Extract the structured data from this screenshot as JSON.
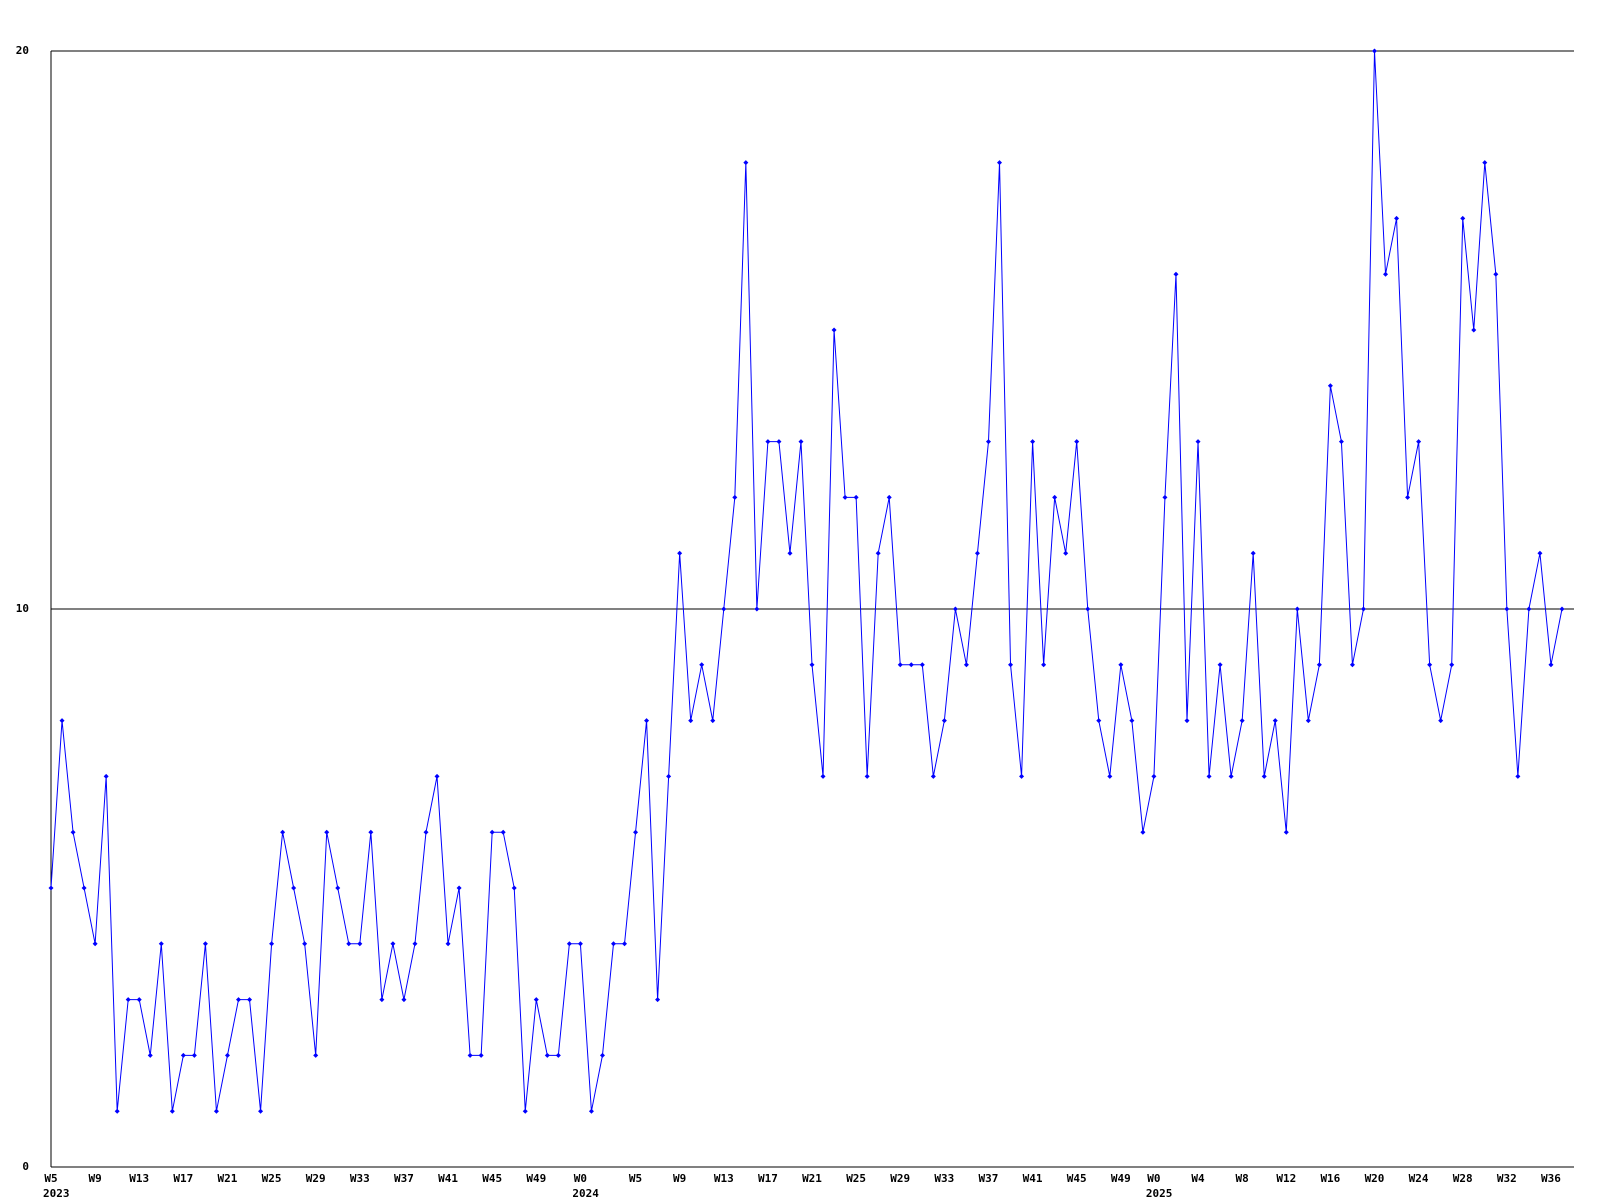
{
  "chart_data": {
    "type": "line",
    "categories": [
      "W5",
      null,
      null,
      null,
      "W9",
      null,
      null,
      null,
      "W13",
      null,
      null,
      null,
      "W17",
      null,
      null,
      null,
      "W21",
      null,
      null,
      null,
      "W25",
      null,
      null,
      null,
      "W29",
      null,
      null,
      null,
      "W33",
      null,
      null,
      null,
      "W37",
      null,
      null,
      null,
      "W41",
      null,
      null,
      null,
      "W45",
      null,
      null,
      null,
      "W49",
      null,
      null,
      null,
      "W0",
      null,
      null,
      null,
      null,
      "W5",
      null,
      null,
      null,
      "W9",
      null,
      null,
      null,
      "W13",
      null,
      null,
      null,
      "W17",
      null,
      null,
      null,
      "W21",
      null,
      null,
      null,
      "W25",
      null,
      null,
      null,
      "W29",
      null,
      null,
      null,
      "W33",
      null,
      null,
      null,
      "W37",
      null,
      null,
      null,
      "W41",
      null,
      null,
      null,
      "W45",
      null,
      null,
      null,
      "W49",
      null,
      null,
      "W0",
      null,
      null,
      null,
      "W4",
      null,
      null,
      null,
      "W8",
      null,
      null,
      null,
      "W12",
      null,
      null,
      null,
      "W16",
      null,
      null,
      null,
      "W20",
      null,
      null,
      null,
      "W24",
      null,
      null,
      null,
      "W28",
      null,
      null,
      null,
      "W32",
      null,
      null,
      null,
      "W36",
      null
    ],
    "years": [
      "2023",
      null,
      null,
      null,
      null,
      null,
      null,
      null,
      null,
      null,
      null,
      null,
      null,
      null,
      null,
      null,
      null,
      null,
      null,
      null,
      null,
      null,
      null,
      null,
      null,
      null,
      null,
      null,
      null,
      null,
      null,
      null,
      null,
      null,
      null,
      null,
      null,
      null,
      null,
      null,
      null,
      null,
      null,
      null,
      null,
      null,
      null,
      null,
      "2024",
      null,
      null,
      null,
      null,
      null,
      null,
      null,
      null,
      null,
      null,
      null,
      null,
      null,
      null,
      null,
      null,
      null,
      null,
      null,
      null,
      null,
      null,
      null,
      null,
      null,
      null,
      null,
      null,
      null,
      null,
      null,
      null,
      null,
      null,
      null,
      null,
      null,
      null,
      null,
      null,
      null,
      null,
      null,
      null,
      null,
      null,
      null,
      null,
      null,
      null,
      null,
      "2025",
      null,
      null,
      null,
      null,
      null,
      null,
      null,
      null,
      null,
      null,
      null,
      null,
      null,
      null,
      null,
      null,
      null,
      null,
      null,
      null,
      null,
      null,
      null,
      null,
      null,
      null,
      null,
      null,
      null,
      null,
      null,
      null,
      null,
      null,
      null,
      null,
      null
    ],
    "series": [
      {
        "color": "#0000ff",
        "values": [
          5,
          8,
          6,
          5,
          4,
          7,
          1,
          3,
          3,
          2,
          4,
          1,
          2,
          2,
          4,
          1,
          2,
          3,
          3,
          1,
          4,
          6,
          5,
          4,
          2,
          6,
          5,
          4,
          4,
          6,
          3,
          4,
          3,
          4,
          6,
          7,
          4,
          5,
          2,
          2,
          6,
          6,
          5,
          1,
          3,
          2,
          2,
          4,
          4,
          1,
          2,
          4,
          4,
          6,
          8,
          3,
          7,
          11,
          8,
          9,
          8,
          10,
          12,
          18,
          10,
          13,
          13,
          11,
          13,
          9,
          7,
          15,
          12,
          12,
          7,
          11,
          12,
          9,
          9,
          9,
          7,
          8,
          10,
          9,
          11,
          13,
          18,
          9,
          7,
          13,
          9,
          12,
          11,
          13,
          10,
          8,
          7,
          9,
          8,
          6,
          7,
          12,
          16,
          8,
          13,
          7,
          9,
          7,
          8,
          11,
          7,
          8,
          6,
          10,
          8,
          9,
          14,
          13,
          9,
          10,
          20,
          16,
          17,
          12,
          13,
          9,
          8,
          9,
          17,
          15,
          18,
          16,
          10,
          7,
          10,
          11,
          9,
          10
        ]
      }
    ],
    "ylim": [
      0,
      20
    ],
    "yticks": [
      0,
      10,
      20
    ],
    "grid": true
  }
}
